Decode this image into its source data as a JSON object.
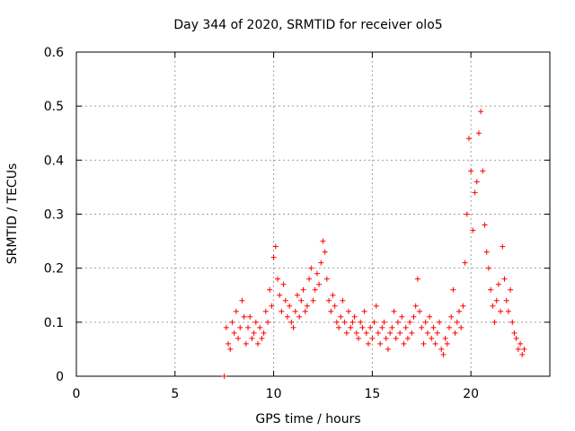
{
  "chart_data": {
    "type": "scatter",
    "title": "Day 344 of 2020, SRMTID for receiver olo5",
    "xlabel": "GPS time / hours",
    "ylabel": "SRMTID / TECUs",
    "xlim": [
      0,
      24
    ],
    "ylim": [
      0,
      0.6
    ],
    "xticks": [
      0,
      5,
      10,
      15,
      20
    ],
    "yticks": [
      0,
      0.1,
      0.2,
      0.3,
      0.4,
      0.5,
      0.6
    ],
    "xtick_labels": [
      "0",
      "5",
      "10",
      "15",
      "20"
    ],
    "ytick_labels": [
      "0",
      "0.1",
      "0.2",
      "0.3",
      "0.4",
      "0.5",
      "0.6"
    ],
    "grid": true,
    "marker": "+",
    "color": "#ff0000",
    "series": [
      {
        "name": "SRMTID",
        "points": [
          [
            7.5,
            0.0
          ],
          [
            7.6,
            0.09
          ],
          [
            7.7,
            0.06
          ],
          [
            7.8,
            0.05
          ],
          [
            7.9,
            0.1
          ],
          [
            8.0,
            0.08
          ],
          [
            8.1,
            0.12
          ],
          [
            8.2,
            0.07
          ],
          [
            8.3,
            0.09
          ],
          [
            8.4,
            0.14
          ],
          [
            8.5,
            0.11
          ],
          [
            8.6,
            0.06
          ],
          [
            8.7,
            0.09
          ],
          [
            8.8,
            0.11
          ],
          [
            8.9,
            0.07
          ],
          [
            9.0,
            0.08
          ],
          [
            9.1,
            0.1
          ],
          [
            9.2,
            0.06
          ],
          [
            9.3,
            0.09
          ],
          [
            9.4,
            0.07
          ],
          [
            9.5,
            0.08
          ],
          [
            9.6,
            0.12
          ],
          [
            9.7,
            0.1
          ],
          [
            9.8,
            0.16
          ],
          [
            9.9,
            0.13
          ],
          [
            10.0,
            0.22
          ],
          [
            10.1,
            0.24
          ],
          [
            10.2,
            0.18
          ],
          [
            10.3,
            0.15
          ],
          [
            10.4,
            0.12
          ],
          [
            10.5,
            0.17
          ],
          [
            10.6,
            0.14
          ],
          [
            10.7,
            0.11
          ],
          [
            10.8,
            0.13
          ],
          [
            10.9,
            0.1
          ],
          [
            11.0,
            0.09
          ],
          [
            11.1,
            0.12
          ],
          [
            11.2,
            0.15
          ],
          [
            11.3,
            0.11
          ],
          [
            11.4,
            0.14
          ],
          [
            11.5,
            0.16
          ],
          [
            11.6,
            0.12
          ],
          [
            11.7,
            0.13
          ],
          [
            11.8,
            0.18
          ],
          [
            11.9,
            0.2
          ],
          [
            12.0,
            0.14
          ],
          [
            12.1,
            0.16
          ],
          [
            12.2,
            0.19
          ],
          [
            12.3,
            0.17
          ],
          [
            12.4,
            0.21
          ],
          [
            12.5,
            0.25
          ],
          [
            12.6,
            0.23
          ],
          [
            12.7,
            0.18
          ],
          [
            12.8,
            0.14
          ],
          [
            12.9,
            0.12
          ],
          [
            13.0,
            0.15
          ],
          [
            13.1,
            0.13
          ],
          [
            13.2,
            0.1
          ],
          [
            13.3,
            0.09
          ],
          [
            13.4,
            0.11
          ],
          [
            13.5,
            0.14
          ],
          [
            13.6,
            0.1
          ],
          [
            13.7,
            0.08
          ],
          [
            13.8,
            0.12
          ],
          [
            13.9,
            0.09
          ],
          [
            14.0,
            0.1
          ],
          [
            14.1,
            0.11
          ],
          [
            14.2,
            0.08
          ],
          [
            14.3,
            0.07
          ],
          [
            14.4,
            0.1
          ],
          [
            14.5,
            0.09
          ],
          [
            14.6,
            0.12
          ],
          [
            14.7,
            0.08
          ],
          [
            14.8,
            0.06
          ],
          [
            14.9,
            0.09
          ],
          [
            15.0,
            0.07
          ],
          [
            15.1,
            0.1
          ],
          [
            15.2,
            0.13
          ],
          [
            15.3,
            0.08
          ],
          [
            15.4,
            0.06
          ],
          [
            15.5,
            0.09
          ],
          [
            15.6,
            0.1
          ],
          [
            15.7,
            0.07
          ],
          [
            15.8,
            0.05
          ],
          [
            15.9,
            0.08
          ],
          [
            16.0,
            0.09
          ],
          [
            16.1,
            0.12
          ],
          [
            16.2,
            0.07
          ],
          [
            16.3,
            0.1
          ],
          [
            16.4,
            0.08
          ],
          [
            16.5,
            0.11
          ],
          [
            16.6,
            0.06
          ],
          [
            16.7,
            0.09
          ],
          [
            16.8,
            0.07
          ],
          [
            16.9,
            0.1
          ],
          [
            17.0,
            0.08
          ],
          [
            17.1,
            0.11
          ],
          [
            17.2,
            0.13
          ],
          [
            17.3,
            0.18
          ],
          [
            17.4,
            0.12
          ],
          [
            17.5,
            0.09
          ],
          [
            17.6,
            0.06
          ],
          [
            17.7,
            0.1
          ],
          [
            17.8,
            0.08
          ],
          [
            17.9,
            0.11
          ],
          [
            18.0,
            0.07
          ],
          [
            18.1,
            0.09
          ],
          [
            18.2,
            0.06
          ],
          [
            18.3,
            0.08
          ],
          [
            18.4,
            0.1
          ],
          [
            18.5,
            0.05
          ],
          [
            18.6,
            0.04
          ],
          [
            18.7,
            0.07
          ],
          [
            18.8,
            0.06
          ],
          [
            18.9,
            0.09
          ],
          [
            19.0,
            0.11
          ],
          [
            19.1,
            0.16
          ],
          [
            19.2,
            0.08
          ],
          [
            19.3,
            0.1
          ],
          [
            19.4,
            0.12
          ],
          [
            19.5,
            0.09
          ],
          [
            19.6,
            0.13
          ],
          [
            19.7,
            0.21
          ],
          [
            19.8,
            0.3
          ],
          [
            19.9,
            0.44
          ],
          [
            20.0,
            0.38
          ],
          [
            20.1,
            0.27
          ],
          [
            20.2,
            0.34
          ],
          [
            20.3,
            0.36
          ],
          [
            20.4,
            0.45
          ],
          [
            20.5,
            0.49
          ],
          [
            20.6,
            0.38
          ],
          [
            20.7,
            0.28
          ],
          [
            20.8,
            0.23
          ],
          [
            20.9,
            0.2
          ],
          [
            21.0,
            0.16
          ],
          [
            21.1,
            0.13
          ],
          [
            21.2,
            0.1
          ],
          [
            21.3,
            0.14
          ],
          [
            21.4,
            0.17
          ],
          [
            21.5,
            0.12
          ],
          [
            21.6,
            0.24
          ],
          [
            21.7,
            0.18
          ],
          [
            21.8,
            0.14
          ],
          [
            21.9,
            0.12
          ],
          [
            22.0,
            0.16
          ],
          [
            22.1,
            0.1
          ],
          [
            22.2,
            0.08
          ],
          [
            22.3,
            0.07
          ],
          [
            22.4,
            0.05
          ],
          [
            22.5,
            0.06
          ],
          [
            22.6,
            0.04
          ],
          [
            22.7,
            0.05
          ]
        ]
      }
    ]
  }
}
